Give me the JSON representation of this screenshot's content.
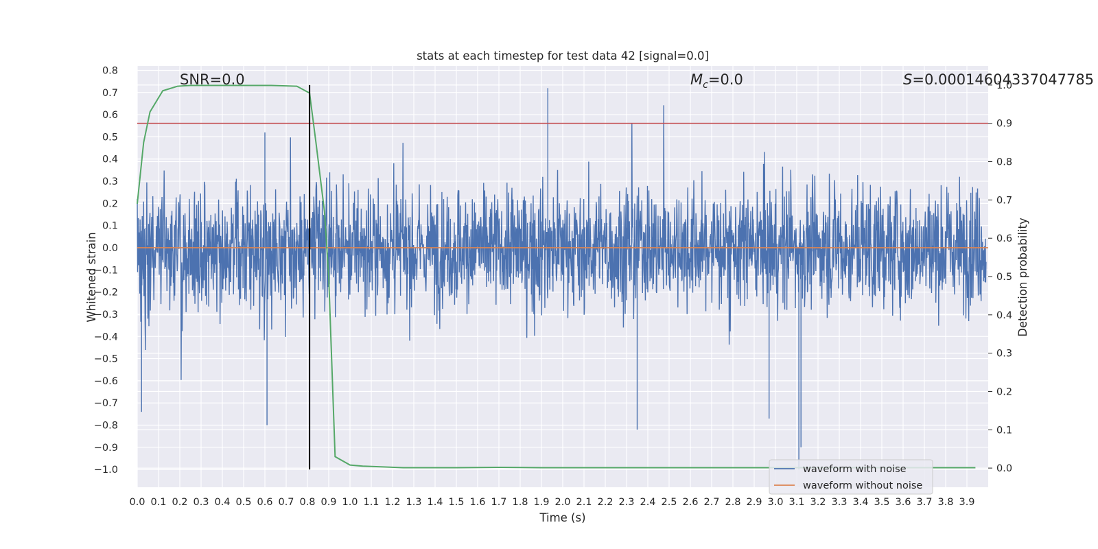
{
  "chart_data": {
    "type": "line",
    "title": "stats at each timestep for test data 42 [signal=0.0]",
    "xlabel": "Time (s)",
    "ylabel_left": "Whitened strain",
    "ylabel_right": "Detection probability",
    "xlim": [
      0.0,
      4.0
    ],
    "ylim_left": [
      -1.08,
      0.82
    ],
    "ylim_right": [
      -0.05,
      1.05
    ],
    "x_ticks": [
      "0.0",
      "0.1",
      "0.2",
      "0.3",
      "0.4",
      "0.5",
      "0.6",
      "0.7",
      "0.8",
      "0.9",
      "1.0",
      "1.1",
      "1.2",
      "1.3",
      "1.4",
      "1.5",
      "1.6",
      "1.7",
      "1.8",
      "1.9",
      "2.0",
      "2.1",
      "2.2",
      "2.3",
      "2.4",
      "2.5",
      "2.6",
      "2.7",
      "2.8",
      "2.9",
      "3.0",
      "3.1",
      "3.2",
      "3.3",
      "3.4",
      "3.5",
      "3.6",
      "3.7",
      "3.8",
      "3.9"
    ],
    "y_ticks_left": [
      "0.8",
      "0.7",
      "0.6",
      "0.5",
      "0.4",
      "0.3",
      "0.2",
      "0.1",
      "0.0",
      "−0.1",
      "−0.2",
      "−0.3",
      "−0.4",
      "−0.5",
      "−0.6",
      "−0.7",
      "−0.8",
      "−0.9",
      "−1.0"
    ],
    "y_ticks_right": [
      "1.0",
      "0.9",
      "0.8",
      "0.7",
      "0.6",
      "0.5",
      "0.4",
      "0.3",
      "0.2",
      "0.1",
      "0.0"
    ],
    "annotations": {
      "snr": "SNR=0.0",
      "mc_symbol": "M",
      "mc_sub": "c",
      "mc_value": "=0.0",
      "s_symbol": "S",
      "s_value": "=0.00014604337047785"
    },
    "threshold_probability": 0.9,
    "marker_time": 0.81,
    "series": [
      {
        "name": "waveform with noise",
        "axis": "left",
        "color": "#4c72b0",
        "description": "dense whitened noise, roughly uniform amplitude about ±0.4 with spikes reaching 0.72 and −1.0"
      },
      {
        "name": "waveform without noise",
        "axis": "left",
        "color": "#dd8452",
        "x": [
          0.0,
          4.0
        ],
        "values": [
          0.0,
          0.0
        ]
      },
      {
        "name": "detection probability",
        "axis": "right",
        "color": "#55a868",
        "x": [
          0.0,
          0.03,
          0.06,
          0.12,
          0.19,
          0.25,
          0.5,
          0.63,
          0.75,
          0.81,
          0.84,
          0.88,
          0.9,
          0.93,
          1.0,
          1.06,
          1.25,
          1.5,
          1.7,
          1.9,
          2.5,
          3.0,
          3.5,
          3.94
        ],
        "values": [
          0.69,
          0.85,
          0.93,
          0.985,
          0.997,
          0.999,
          0.999,
          0.999,
          0.997,
          0.979,
          0.85,
          0.67,
          0.5,
          0.03,
          0.008,
          0.005,
          0.001,
          0.001,
          0.002,
          0.001,
          0.001,
          0.001,
          0.001,
          0.001
        ]
      }
    ],
    "legend": {
      "placement": "lower-right",
      "entries": [
        {
          "label": "waveform with noise",
          "color": "#4c72b0"
        },
        {
          "label": "waveform without noise",
          "color": "#dd8452"
        }
      ]
    },
    "colors": {
      "plot_background": "#eaeaf2",
      "grid": "#ffffff",
      "threshold_line": "#c44e52",
      "marker_line": "#000000",
      "text": "#262626"
    }
  }
}
